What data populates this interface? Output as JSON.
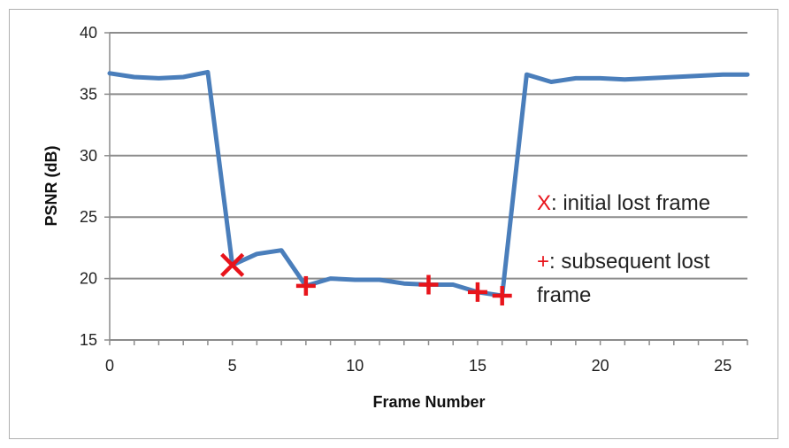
{
  "chart_data": {
    "type": "line",
    "xlabel": "Frame Number",
    "ylabel": "PSNR (dB)",
    "xlim": [
      0,
      26
    ],
    "ylim": [
      15,
      40
    ],
    "x_ticks": [
      0,
      5,
      10,
      15,
      20,
      25
    ],
    "y_ticks": [
      15,
      20,
      25,
      30,
      35,
      40
    ],
    "grid": "horizontal",
    "line_color": "#4a7ebb",
    "marker_color": "#e8141b",
    "series": [
      {
        "x": [
          0,
          1,
          2,
          3,
          4,
          5,
          6,
          7,
          8,
          9,
          10,
          11,
          12,
          13,
          14,
          15,
          16,
          17,
          18,
          19,
          20,
          21,
          22,
          23,
          24,
          25,
          26
        ],
        "values": [
          36.7,
          36.4,
          36.3,
          36.4,
          36.8,
          21.1,
          22.0,
          22.3,
          19.4,
          20.0,
          19.9,
          19.9,
          19.6,
          19.5,
          19.5,
          18.9,
          18.6,
          36.6,
          36.0,
          36.3,
          36.3,
          36.2,
          36.3,
          36.4,
          36.5,
          36.6,
          36.6
        ]
      }
    ],
    "markers": [
      {
        "kind": "x",
        "x": 5,
        "y": 21.1
      },
      {
        "kind": "plus",
        "x": 8,
        "y": 19.4
      },
      {
        "kind": "plus",
        "x": 13,
        "y": 19.5
      },
      {
        "kind": "plus",
        "x": 15,
        "y": 18.9
      },
      {
        "kind": "plus",
        "x": 16,
        "y": 18.6
      }
    ],
    "annotations": [
      {
        "symbol": "X",
        "text": ": initial lost frame"
      },
      {
        "symbol": "+",
        "text": ": subsequent lost",
        "continuation": "frame"
      }
    ]
  }
}
